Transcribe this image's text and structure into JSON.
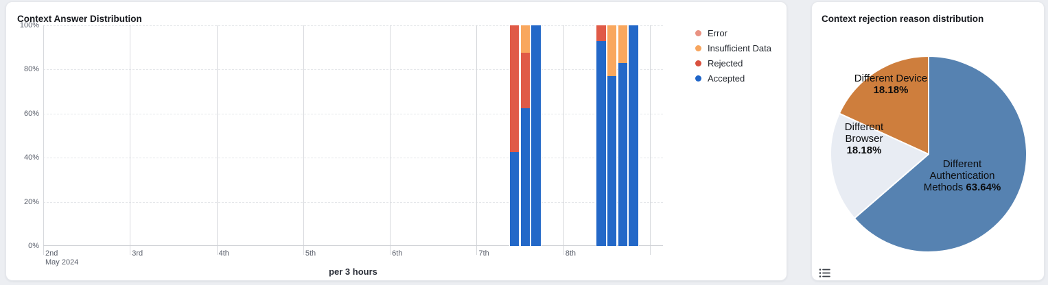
{
  "page": {
    "background": "#eceef2"
  },
  "bar_card": {
    "title": "Context Answer Distribution"
  },
  "pie_card": {
    "title": "Context rejection reason distribution"
  },
  "chart_data": [
    {
      "type": "bar",
      "variant": "100-percent-stacked-time-series",
      "title": "Context Answer Distribution",
      "x_axis": {
        "caption": "per 3 hours",
        "tick_labels": [
          "2nd",
          "3rd",
          "4th",
          "5th",
          "6th",
          "7th",
          "8th"
        ],
        "first_tick_sub_label": "May 2024",
        "slots_per_day": 8,
        "total_slots": 57,
        "grid": true
      },
      "y_axis": {
        "tick_labels": [
          "0%",
          "20%",
          "40%",
          "60%",
          "80%",
          "100%"
        ],
        "tick_values": [
          0,
          20,
          40,
          60,
          80,
          100
        ],
        "range": [
          0,
          100
        ],
        "grid": "dashed"
      },
      "legend": {
        "position": "top-right-outside",
        "items": [
          {
            "label": "Error",
            "color": "#e99282"
          },
          {
            "label": "Insufficient Data",
            "color": "#f7a55e"
          },
          {
            "label": "Rejected",
            "color": "#d9513f"
          },
          {
            "label": "Accepted",
            "color": "#1f65c8"
          }
        ]
      },
      "series_colors": {
        "Accepted": "#2368c8",
        "Rejected": "#e05a47",
        "Insufficient Data": "#f9a75e",
        "Error": "#e99282"
      },
      "bars": [
        {
          "slot": 43,
          "day": "7th",
          "segments": [
            {
              "series": "Accepted",
              "pct": 42.5
            },
            {
              "series": "Rejected",
              "pct": 57.5
            }
          ]
        },
        {
          "slot": 44,
          "day": "7th",
          "segments": [
            {
              "series": "Accepted",
              "pct": 62.5
            },
            {
              "series": "Rejected",
              "pct": 25
            },
            {
              "series": "Insufficient Data",
              "pct": 12.5
            }
          ]
        },
        {
          "slot": 45,
          "day": "7th",
          "segments": [
            {
              "series": "Accepted",
              "pct": 100
            }
          ]
        },
        {
          "slot": 51,
          "day": "8th",
          "segments": [
            {
              "series": "Accepted",
              "pct": 93
            },
            {
              "series": "Rejected",
              "pct": 7
            }
          ]
        },
        {
          "slot": 52,
          "day": "8th",
          "segments": [
            {
              "series": "Accepted",
              "pct": 77
            },
            {
              "series": "Insufficient Data",
              "pct": 23
            }
          ]
        },
        {
          "slot": 53,
          "day": "8th",
          "segments": [
            {
              "series": "Accepted",
              "pct": 83
            },
            {
              "series": "Insufficient Data",
              "pct": 17
            }
          ]
        },
        {
          "slot": 54,
          "day": "8th",
          "segments": [
            {
              "series": "Accepted",
              "pct": 100
            }
          ]
        }
      ]
    },
    {
      "type": "pie",
      "title": "Context rejection reason distribution",
      "start_angle": "top",
      "direction": "clockwise",
      "slices": [
        {
          "label": "Different Authentication Methods",
          "pct": 63.64,
          "pct_label": "63.64%",
          "color": "#5682b1"
        },
        {
          "label": "Different Browser",
          "pct": 18.18,
          "pct_label": "18.18%",
          "color": "#e8ecf3"
        },
        {
          "label": "Different Device",
          "pct": 18.18,
          "pct_label": "18.18%",
          "color": "#ce7e3d"
        }
      ]
    }
  ]
}
